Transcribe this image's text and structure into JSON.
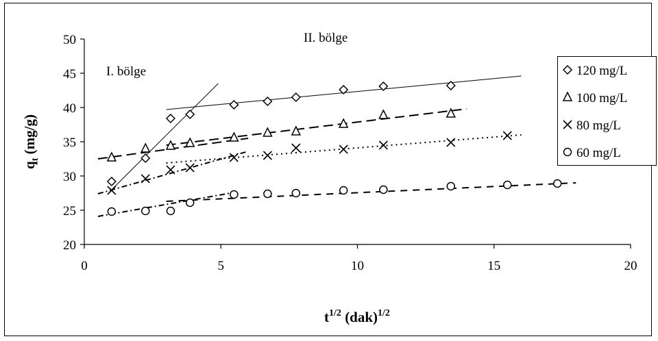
{
  "chart_data": {
    "type": "scatter",
    "xlabel_base": "t",
    "xlabel_exp": "1/2",
    "xlabel_mid": " (dak)",
    "xlabel_exp2": "1/2",
    "ylabel_base": "q",
    "ylabel_sub": "t",
    "ylabel_rest": " (mg/g)",
    "xlim": [
      0,
      20
    ],
    "ylim": [
      20,
      50
    ],
    "x_ticks": [
      "0",
      "5",
      "10",
      "15",
      "20"
    ],
    "y_ticks": [
      "20",
      "25",
      "30",
      "35",
      "40",
      "45",
      "50"
    ],
    "annotations": [
      "I. bölge",
      "II. bölge"
    ],
    "series": [
      {
        "name": "120 mg/L",
        "marker": "diamond",
        "points": [
          [
            1.0,
            29.2
          ],
          [
            2.24,
            32.6
          ],
          [
            3.16,
            38.4
          ],
          [
            3.87,
            39.0
          ],
          [
            5.48,
            40.4
          ],
          [
            6.71,
            40.9
          ],
          [
            7.75,
            41.5
          ],
          [
            9.49,
            42.6
          ],
          [
            10.95,
            43.1
          ],
          [
            13.42,
            43.2
          ]
        ]
      },
      {
        "name": "100 mg/L",
        "marker": "triangle",
        "points": [
          [
            1.0,
            32.7
          ],
          [
            2.24,
            34.0
          ],
          [
            3.16,
            34.4
          ],
          [
            3.87,
            34.8
          ],
          [
            5.48,
            35.6
          ],
          [
            6.71,
            36.3
          ],
          [
            7.75,
            36.5
          ],
          [
            9.49,
            37.6
          ],
          [
            10.95,
            38.9
          ],
          [
            13.42,
            39.1
          ]
        ]
      },
      {
        "name": "80 mg/L",
        "marker": "x",
        "points": [
          [
            1.0,
            27.9
          ],
          [
            2.24,
            29.6
          ],
          [
            3.16,
            30.9
          ],
          [
            3.87,
            31.2
          ],
          [
            5.48,
            32.7
          ],
          [
            6.71,
            33.0
          ],
          [
            7.75,
            34.1
          ],
          [
            9.49,
            33.9
          ],
          [
            10.95,
            34.5
          ],
          [
            13.42,
            34.9
          ],
          [
            15.49,
            35.9
          ]
        ]
      },
      {
        "name": "60 mg/L",
        "marker": "circle",
        "points": [
          [
            1.0,
            24.8
          ],
          [
            2.24,
            24.9
          ],
          [
            3.16,
            24.9
          ],
          [
            3.87,
            26.1
          ],
          [
            5.48,
            27.3
          ],
          [
            6.71,
            27.4
          ],
          [
            7.75,
            27.5
          ],
          [
            9.49,
            27.9
          ],
          [
            10.95,
            28.0
          ],
          [
            13.42,
            28.5
          ],
          [
            15.49,
            28.7
          ],
          [
            17.32,
            28.9
          ]
        ]
      }
    ],
    "fit_lines": [
      {
        "series": "120 mg/L",
        "style": "solid",
        "x1": 1.0,
        "y1": 28.0,
        "x2": 4.9,
        "y2": 43.5
      },
      {
        "series": "120 mg/L",
        "style": "solid",
        "x1": 3.0,
        "y1": 39.7,
        "x2": 16.0,
        "y2": 44.6
      },
      {
        "series": "100 mg/L",
        "style": "long-dash",
        "x1": 0.5,
        "y1": 32.5,
        "x2": 6.0,
        "y2": 35.5
      },
      {
        "series": "100 mg/L",
        "style": "long-dash",
        "x1": 3.0,
        "y1": 34.5,
        "x2": 14.0,
        "y2": 39.8
      },
      {
        "series": "80 mg/L",
        "style": "dot-dash",
        "x1": 0.5,
        "y1": 27.4,
        "x2": 6.0,
        "y2": 33.6
      },
      {
        "series": "80 mg/L",
        "style": "dotted",
        "x1": 3.0,
        "y1": 31.9,
        "x2": 16.0,
        "y2": 36.0
      },
      {
        "series": "60 mg/L",
        "style": "dot-dash",
        "x1": 0.5,
        "y1": 24.1,
        "x2": 5.5,
        "y2": 27.6
      },
      {
        "series": "60 mg/L",
        "style": "dash",
        "x1": 3.0,
        "y1": 26.3,
        "x2": 18.0,
        "y2": 29.0
      }
    ],
    "legend_position": "right",
    "grid": false
  }
}
